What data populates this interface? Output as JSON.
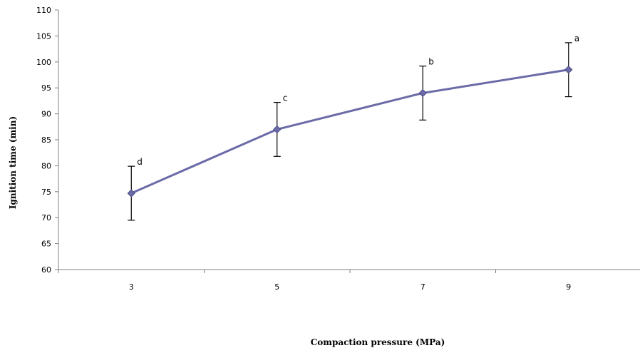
{
  "chart_data": {
    "type": "line",
    "title": "",
    "xlabel": "Compaction pressure (MPa)",
    "ylabel": "Ignition time (min)",
    "categories": [
      "3",
      "5",
      "7",
      "9"
    ],
    "ylim": [
      60,
      110
    ],
    "yticks": [
      60,
      65,
      70,
      75,
      80,
      85,
      90,
      95,
      100,
      105,
      110
    ],
    "grid": false,
    "legend": "none",
    "series": [
      {
        "values": [
          74.7,
          87.0,
          94.0,
          98.5
        ],
        "error": [
          5.2,
          5.2,
          5.2,
          5.2
        ],
        "annotations": [
          "d",
          "c",
          "b",
          "a"
        ],
        "color": "#6b6ba8"
      }
    ]
  }
}
